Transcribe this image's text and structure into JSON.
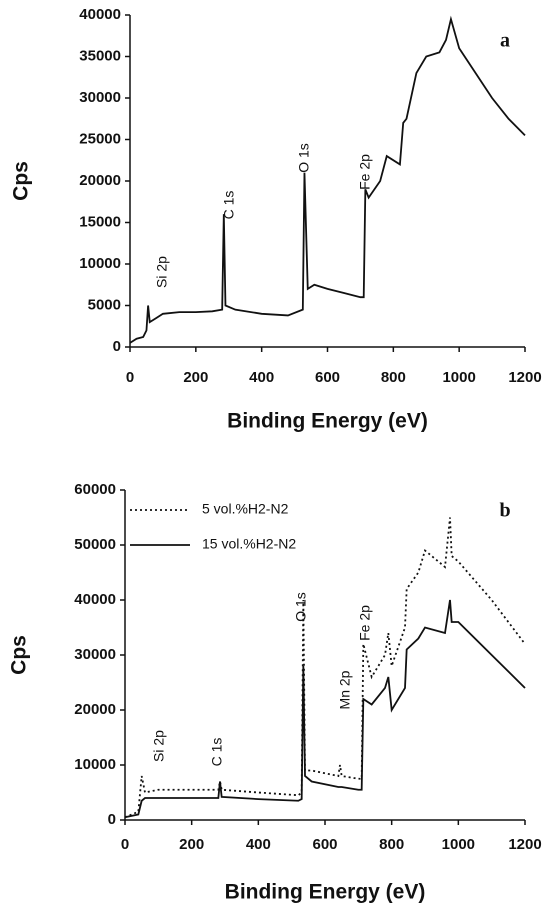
{
  "chart_data": [
    {
      "type": "line",
      "panel_label": "a",
      "xlabel": "Binding Energy (eV)",
      "ylabel": "Cps",
      "xlim": [
        0,
        1200
      ],
      "xticks": [
        0,
        200,
        400,
        600,
        800,
        1000,
        1200
      ],
      "ylim": [
        0,
        40000
      ],
      "yticks": [
        0,
        5000,
        10000,
        15000,
        20000,
        25000,
        30000,
        35000,
        40000
      ],
      "annotations": [
        "Si 2p",
        "C 1s",
        "O 1s",
        "Fe 2p"
      ],
      "x": [
        0,
        20,
        40,
        50,
        55,
        60,
        80,
        100,
        150,
        200,
        250,
        280,
        285,
        290,
        320,
        400,
        480,
        525,
        530,
        540,
        560,
        600,
        650,
        700,
        710,
        715,
        725,
        760,
        780,
        820,
        830,
        840,
        870,
        900,
        940,
        960,
        975,
        1000,
        1050,
        1100,
        1150,
        1200
      ],
      "series": [
        {
          "color": "#111111",
          "dash": "solid",
          "values": [
            500,
            1000,
            1200,
            2000,
            5000,
            3000,
            3500,
            4000,
            4200,
            4200,
            4300,
            4500,
            16000,
            5000,
            4500,
            4000,
            3800,
            4500,
            21000,
            7000,
            7500,
            7000,
            6500,
            6000,
            6000,
            19000,
            18000,
            20000,
            23000,
            22000,
            27000,
            27500,
            33000,
            35000,
            35500,
            37000,
            39500,
            36000,
            33000,
            30000,
            27500,
            25500
          ]
        }
      ]
    },
    {
      "type": "line",
      "panel_label": "b",
      "xlabel": "Binding Energy (eV)",
      "ylabel": "Cps",
      "xlim": [
        0,
        1200
      ],
      "xticks": [
        0,
        200,
        400,
        600,
        800,
        1000,
        1200
      ],
      "ylim": [
        0,
        60000
      ],
      "yticks": [
        0,
        10000,
        20000,
        30000,
        40000,
        50000,
        60000
      ],
      "annotations": [
        "Si 2p",
        "C 1s",
        "O 1s",
        "Mn 2p",
        "Fe 2p"
      ],
      "legend": "upper left",
      "x": [
        0,
        40,
        50,
        60,
        100,
        200,
        280,
        285,
        290,
        400,
        520,
        530,
        535,
        540,
        560,
        640,
        645,
        650,
        700,
        710,
        715,
        740,
        780,
        790,
        800,
        840,
        845,
        880,
        900,
        960,
        975,
        980,
        1000,
        1100,
        1200
      ],
      "series": [
        {
          "name": "5 vol.%H2-N2",
          "color": "#111111",
          "dash": "dotted",
          "values": [
            500,
            1500,
            8000,
            5000,
            5500,
            5500,
            5500,
            7000,
            5500,
            5000,
            4500,
            5000,
            40000,
            9000,
            9000,
            8000,
            10000,
            8000,
            7500,
            7500,
            32000,
            26000,
            30000,
            34000,
            28000,
            35000,
            42000,
            45000,
            49000,
            46000,
            55000,
            48000,
            47000,
            40000,
            32000
          ]
        },
        {
          "name": "15 vol.%H2-N2",
          "color": "#111111",
          "dash": "solid",
          "values": [
            500,
            1000,
            3500,
            4000,
            4000,
            4000,
            4000,
            7000,
            4200,
            3800,
            3500,
            3800,
            28000,
            8000,
            7000,
            6000,
            6000,
            6000,
            5500,
            5500,
            22000,
            21000,
            24000,
            26000,
            20000,
            24000,
            31000,
            33000,
            35000,
            34000,
            40000,
            36000,
            36000,
            30000,
            24000
          ]
        }
      ]
    }
  ]
}
